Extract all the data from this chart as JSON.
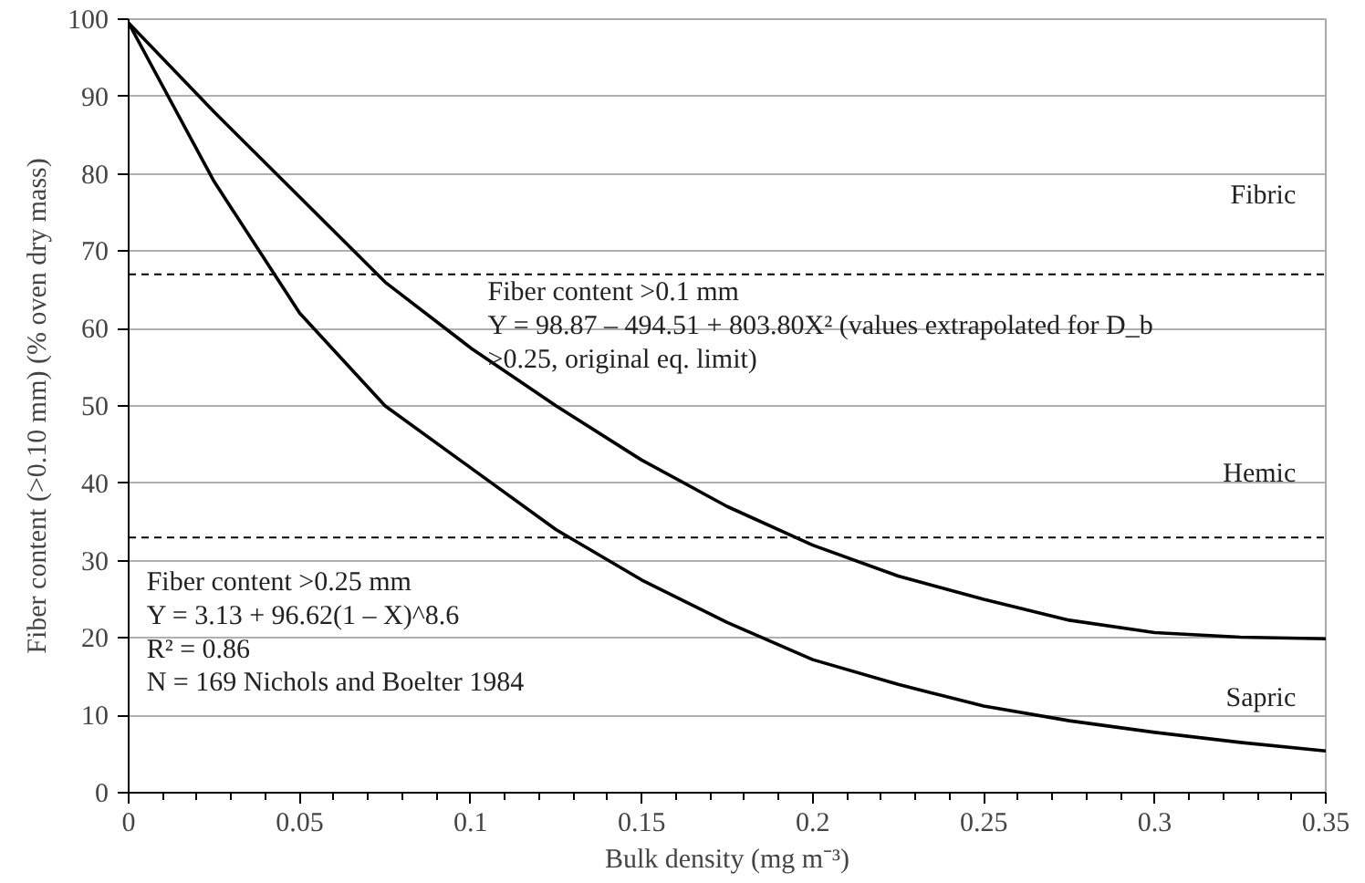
{
  "chart_data": {
    "type": "line",
    "xlabel": "Bulk density (mg m⁻³)",
    "ylabel": "Fiber content (>0.10 mm) (% oven dry mass)",
    "xlim": [
      0,
      0.35
    ],
    "xticks": [
      0,
      0.05,
      0.1,
      0.15,
      0.2,
      0.25,
      0.3,
      0.35
    ],
    "ylim": [
      0,
      100
    ],
    "yticks": [
      0,
      10,
      20,
      30,
      40,
      50,
      60,
      70,
      80,
      90,
      100
    ],
    "grid": "y",
    "line_style": "solid",
    "marker": "none",
    "series": [
      {
        "color": "#000000",
        "x": [
          0,
          0.025,
          0.05,
          0.075,
          0.1,
          0.125,
          0.15,
          0.175,
          0.2,
          0.225,
          0.25,
          0.275,
          0.3,
          0.325,
          0.35
        ],
        "values": [
          99.5,
          88,
          77,
          66,
          57.5,
          50,
          43,
          37,
          32,
          28,
          25,
          22.3,
          20.7,
          20.1,
          19.9
        ]
      },
      {
        "color": "#000000",
        "x": [
          0,
          0.025,
          0.05,
          0.075,
          0.1,
          0.125,
          0.15,
          0.175,
          0.2,
          0.225,
          0.25,
          0.275,
          0.3,
          0.325,
          0.35
        ],
        "values": [
          99.5,
          79,
          62,
          50,
          42,
          34,
          27.5,
          22,
          17.2,
          14,
          11.2,
          9.3,
          7.8,
          6.5,
          5.4
        ]
      }
    ],
    "ref_lines": [
      {
        "axis": "y",
        "value": 67,
        "line_style": "dashed",
        "color": "#000000"
      },
      {
        "axis": "y",
        "value": 33,
        "line_style": "dashed",
        "color": "#000000"
      }
    ],
    "annotations": [
      "Fibric",
      "Hemic",
      "Sapric",
      "Fiber content >0.1 mm\nY = 98.87 – 494.51 + 803.80X² (values extrapolated for D_b\n>0.25, original eq. limit)",
      "Fiber content >0.25 mm\nY = 3.13 + 96.62(1 – X)^8.6\nR² = 0.86\nN = 169  Nichols and Boelter 1984"
    ]
  }
}
